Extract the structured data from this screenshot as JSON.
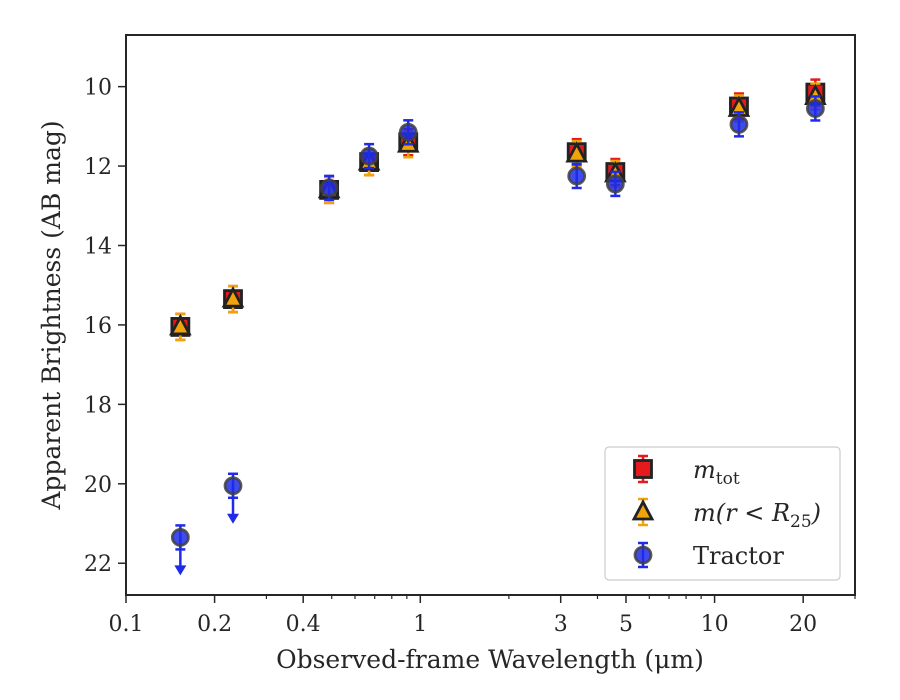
{
  "chart_data": {
    "type": "scatter",
    "title": "",
    "xlabel": "Observed-frame Wavelength (μm)",
    "ylabel": "Apparent Brightness (AB mag)",
    "xscale": "log",
    "xlim": [
      0.1,
      30
    ],
    "ylim": [
      22.8,
      8.7
    ],
    "y_inverted": true,
    "grid": false,
    "legend_position": "lower-right",
    "x_ticks": [
      {
        "value": 0.1,
        "label": "0.1"
      },
      {
        "value": 0.2,
        "label": "0.2"
      },
      {
        "value": 0.4,
        "label": "0.4"
      },
      {
        "value": 1,
        "label": "1"
      },
      {
        "value": 3,
        "label": "3"
      },
      {
        "value": 5,
        "label": "5"
      },
      {
        "value": 10,
        "label": "10"
      },
      {
        "value": 20,
        "label": "20"
      }
    ],
    "y_ticks": [
      {
        "value": 10,
        "label": "10"
      },
      {
        "value": 12,
        "label": "12"
      },
      {
        "value": 14,
        "label": "14"
      },
      {
        "value": 16,
        "label": "16"
      },
      {
        "value": 18,
        "label": "18"
      },
      {
        "value": 20,
        "label": "20"
      },
      {
        "value": 22,
        "label": "22"
      }
    ],
    "series": [
      {
        "name": "m_tot",
        "label_main": "m",
        "label_sub": "tot",
        "marker": "square",
        "color": "#e41a1c",
        "edge_color": "#222222",
        "x": [
          0.153,
          0.231,
          0.49,
          0.67,
          0.91,
          3.4,
          4.6,
          12.1,
          22.0
        ],
        "y": [
          16.05,
          15.35,
          12.6,
          11.9,
          11.4,
          11.65,
          12.15,
          10.5,
          10.15
        ]
      },
      {
        "name": "m(r<R25)",
        "label_main": "m(r < R",
        "label_sub": "25",
        "label_end": ")",
        "marker": "triangle",
        "color": "#f0a30a",
        "edge_color": "#222222",
        "x": [
          0.153,
          0.231,
          0.49,
          0.67,
          0.91,
          3.4,
          4.6,
          12.1,
          22.0
        ],
        "y": [
          16.05,
          15.35,
          12.6,
          11.9,
          11.45,
          11.7,
          12.2,
          10.55,
          10.25
        ]
      },
      {
        "name": "Tractor",
        "label_main": "Tractor",
        "marker": "circle",
        "color": "#1f2be8",
        "edge_color": "#404040",
        "x": [
          0.153,
          0.231,
          0.49,
          0.67,
          0.91,
          3.4,
          4.6,
          12.1,
          22.0
        ],
        "y": [
          21.35,
          20.05,
          12.55,
          11.75,
          11.15,
          12.25,
          12.45,
          10.95,
          10.55
        ],
        "upper_limits": [
          true,
          true,
          false,
          false,
          false,
          false,
          false,
          false,
          false
        ]
      }
    ]
  }
}
